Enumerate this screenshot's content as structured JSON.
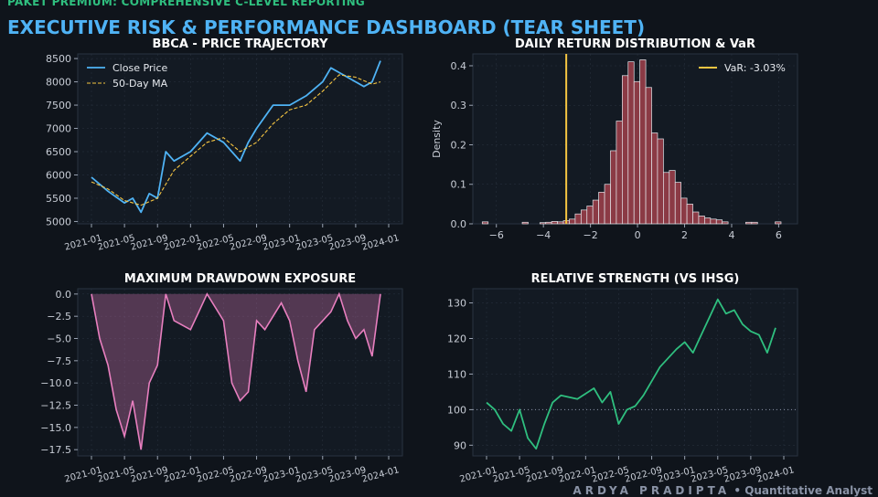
{
  "header": {
    "kicker": "PAKET PREMIUM: COMPREHENSIVE C-LEVEL REPORTING",
    "title": "EXECUTIVE RISK & PERFORMANCE DASHBOARD (TEAR SHEET)"
  },
  "footer": {
    "author": "ARDYA PRADIPTA",
    "separator": "•",
    "role": "Quantitative Analyst"
  },
  "colors": {
    "background": "#0f141b",
    "panel": "#131a23",
    "price_line": "#4fb3f5",
    "ma_line": "#f5c542",
    "histogram_bar": "#8b3a45",
    "var_line": "#f5c542",
    "drawdown": "#e87fbf",
    "relative_strength": "#2fbf7f"
  },
  "chart_data": [
    {
      "type": "line",
      "title": "BBCA - PRICE TRAJECTORY",
      "xlabel": "",
      "ylabel": "",
      "x_ticks": [
        "2021-01",
        "2021-05",
        "2021-09",
        "2022-01",
        "2022-05",
        "2022-09",
        "2023-01",
        "2023-05",
        "2023-09",
        "2024-01"
      ],
      "y_ticks": [
        5000,
        5500,
        6000,
        6500,
        7000,
        7500,
        8000,
        8500
      ],
      "ylim": [
        4950,
        8600
      ],
      "legend": "top-left",
      "series": [
        {
          "name": "Close Price",
          "style": "solid",
          "x": [
            "2021-01",
            "2021-03",
            "2021-05",
            "2021-06",
            "2021-07",
            "2021-08",
            "2021-09",
            "2021-10",
            "2021-11",
            "2022-01",
            "2022-03",
            "2022-05",
            "2022-07",
            "2022-08",
            "2022-09",
            "2022-11",
            "2023-01",
            "2023-03",
            "2023-05",
            "2023-06",
            "2023-07",
            "2023-09",
            "2023-10",
            "2023-11",
            "2023-12"
          ],
          "values": [
            5950,
            5650,
            5400,
            5500,
            5200,
            5600,
            5500,
            6500,
            6300,
            6500,
            6900,
            6700,
            6300,
            6700,
            7000,
            7500,
            7500,
            7700,
            8000,
            8300,
            8200,
            8000,
            7900,
            8000,
            8450
          ]
        },
        {
          "name": "50-Day MA",
          "style": "dashed",
          "x": [
            "2021-01",
            "2021-03",
            "2021-05",
            "2021-07",
            "2021-09",
            "2021-11",
            "2022-01",
            "2022-03",
            "2022-05",
            "2022-07",
            "2022-09",
            "2022-11",
            "2023-01",
            "2023-03",
            "2023-05",
            "2023-07",
            "2023-09",
            "2023-11",
            "2023-12"
          ],
          "values": [
            5850,
            5700,
            5450,
            5350,
            5500,
            6100,
            6400,
            6700,
            6800,
            6500,
            6700,
            7100,
            7400,
            7500,
            7800,
            8150,
            8100,
            7950,
            8000
          ]
        }
      ]
    },
    {
      "type": "bar",
      "title": "DAILY RETURN DISTRIBUTION & VaR",
      "xlabel": "",
      "ylabel": "Density",
      "x_ticks": [
        -6,
        -4,
        -2,
        0,
        2,
        4,
        6
      ],
      "y_ticks": [
        0.0,
        0.1,
        0.2,
        0.3,
        0.4
      ],
      "xlim": [
        -7.0,
        6.8
      ],
      "ylim": [
        0,
        0.43
      ],
      "bin_width": 0.25,
      "bin_starts": [
        -6.6,
        -4.9,
        -4.15,
        -3.9,
        -3.65,
        -3.4,
        -3.15,
        -2.9,
        -2.65,
        -2.4,
        -2.15,
        -1.9,
        -1.65,
        -1.4,
        -1.15,
        -0.9,
        -0.65,
        -0.4,
        -0.15,
        0.1,
        0.35,
        0.6,
        0.85,
        1.1,
        1.35,
        1.6,
        1.85,
        2.1,
        2.35,
        2.6,
        2.85,
        3.1,
        3.35,
        3.6,
        4.6,
        4.85,
        5.85
      ],
      "values": [
        0.005,
        0.004,
        0.003,
        0.004,
        0.006,
        0.005,
        0.008,
        0.012,
        0.025,
        0.035,
        0.045,
        0.06,
        0.08,
        0.1,
        0.185,
        0.26,
        0.375,
        0.41,
        0.36,
        0.415,
        0.345,
        0.23,
        0.215,
        0.13,
        0.135,
        0.105,
        0.065,
        0.05,
        0.03,
        0.02,
        0.015,
        0.012,
        0.01,
        0.005,
        0.004,
        0.004,
        0.005
      ],
      "annotation": {
        "label": "VaR: -3.03%",
        "x": -3.03
      },
      "legend": "top-right"
    },
    {
      "type": "area",
      "title": "MAXIMUM DRAWDOWN EXPOSURE",
      "xlabel": "",
      "ylabel": "",
      "x_ticks": [
        "2021-01",
        "2021-05",
        "2021-09",
        "2022-01",
        "2022-05",
        "2022-09",
        "2023-01",
        "2023-05",
        "2023-09",
        "2024-01"
      ],
      "y_ticks": [
        0.0,
        -2.5,
        -5.0,
        -7.5,
        -10.0,
        -12.5,
        -15.0,
        -17.5
      ],
      "ylim": [
        -18.2,
        0.6
      ],
      "x": [
        "2021-01",
        "2021-02",
        "2021-03",
        "2021-04",
        "2021-05",
        "2021-06",
        "2021-07",
        "2021-08",
        "2021-09",
        "2021-10",
        "2021-11",
        "2022-01",
        "2022-02",
        "2022-03",
        "2022-05",
        "2022-06",
        "2022-07",
        "2022-08",
        "2022-09",
        "2022-10",
        "2022-12",
        "2023-01",
        "2023-02",
        "2023-03",
        "2023-04",
        "2023-06",
        "2023-07",
        "2023-08",
        "2023-09",
        "2023-10",
        "2023-11",
        "2023-12"
      ],
      "values": [
        0.0,
        -5.0,
        -8.0,
        -13.0,
        -16.0,
        -12.0,
        -17.5,
        -10.0,
        -8.0,
        0.0,
        -3.0,
        -4.0,
        -2.0,
        0.0,
        -3.0,
        -10.0,
        -12.0,
        -11.0,
        -3.0,
        -4.0,
        -1.0,
        -3.0,
        -7.5,
        -11.0,
        -4.0,
        -2.0,
        0.0,
        -3.0,
        -5.0,
        -4.0,
        -7.0,
        0.0
      ]
    },
    {
      "type": "line",
      "title": "RELATIVE STRENGTH (VS IHSG)",
      "xlabel": "",
      "ylabel": "",
      "x_ticks": [
        "2021-01",
        "2021-05",
        "2021-09",
        "2022-01",
        "2022-05",
        "2022-09",
        "2023-01",
        "2023-05",
        "2023-09",
        "2024-01"
      ],
      "y_ticks": [
        90,
        100,
        110,
        120,
        130
      ],
      "ylim": [
        87,
        134
      ],
      "baseline": 100,
      "series": [
        {
          "x": [
            "2021-01",
            "2021-02",
            "2021-03",
            "2021-04",
            "2021-05",
            "2021-06",
            "2021-07",
            "2021-08",
            "2021-09",
            "2021-10",
            "2021-12",
            "2022-02",
            "2022-03",
            "2022-04",
            "2022-05",
            "2022-06",
            "2022-07",
            "2022-08",
            "2022-09",
            "2022-10",
            "2022-12",
            "2023-01",
            "2023-02",
            "2023-03",
            "2023-04",
            "2023-05",
            "2023-06",
            "2023-07",
            "2023-08",
            "2023-09",
            "2023-10",
            "2023-11",
            "2023-12"
          ],
          "values": [
            102,
            100,
            96,
            94,
            100,
            92,
            89,
            96,
            102,
            104,
            103,
            106,
            102,
            105,
            96,
            100,
            101,
            104,
            108,
            112,
            117,
            119,
            116,
            121,
            126,
            131,
            127,
            128,
            124,
            122,
            121,
            116,
            123
          ]
        }
      ]
    }
  ]
}
